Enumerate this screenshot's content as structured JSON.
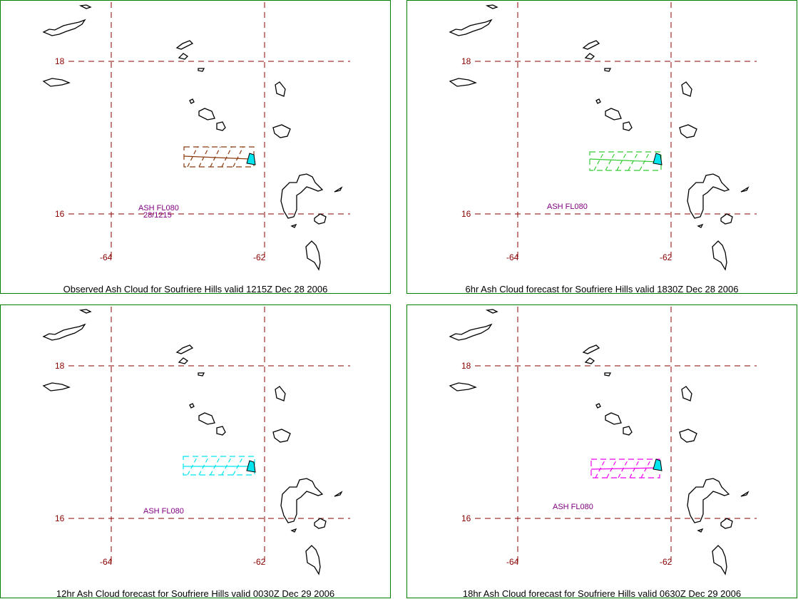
{
  "panels": [
    {
      "caption": "Observed Ash Cloud for Soufriere  Hills valid 1215Z Dec 28 2006",
      "ash_label": "ASH FL080",
      "ash_sub": "28/1215",
      "cloud_color": "#8b3a0f"
    },
    {
      "caption": "6hr Ash Cloud forecast for Soufriere  Hills valid 1830Z Dec 28 2006",
      "ash_label": "ASH FL080",
      "ash_sub": "",
      "cloud_color": "#33cc33"
    },
    {
      "caption": "12hr Ash Cloud forecast for Soufriere  Hills valid 0030Z Dec 29 2006",
      "ash_label": "ASH FL080",
      "ash_sub": "",
      "cloud_color": "#00e5ee"
    },
    {
      "caption": "18hr Ash Cloud forecast for Soufriere  Hills valid 0630Z Dec 29 2006",
      "ash_label": "ASH FL080",
      "ash_sub": "",
      "cloud_color": "#ee00ee"
    }
  ],
  "grid": {
    "lat_labels": [
      "18",
      "16"
    ],
    "lon_labels": [
      "-64",
      "-62"
    ],
    "grid_color": "#8b0000",
    "volcano_color": "#00e5ee"
  }
}
